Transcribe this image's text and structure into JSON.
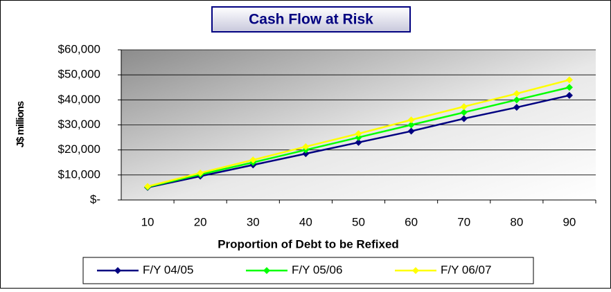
{
  "chart_data": {
    "type": "line",
    "title": "Cash Flow at Risk",
    "x_label": "Proportion of Debt to be Refixed",
    "y_label": "J$ millions",
    "categories": [
      "10",
      "20",
      "30",
      "40",
      "50",
      "60",
      "70",
      "80",
      "90"
    ],
    "series": [
      {
        "name": "F/Y 04/05",
        "color": "#000080",
        "values": [
          5000,
          9500,
          14000,
          18500,
          23000,
          27500,
          32500,
          37000,
          41800
        ]
      },
      {
        "name": "F/Y 05/06",
        "color": "#00ff00",
        "values": [
          5200,
          10200,
          15000,
          20000,
          25000,
          30000,
          35000,
          40000,
          45000
        ]
      },
      {
        "name": "F/Y 06/07",
        "color": "#ffff00",
        "values": [
          5400,
          10800,
          16000,
          21300,
          26500,
          32000,
          37300,
          42500,
          48000
        ]
      }
    ],
    "ylim": [
      0,
      60000
    ],
    "yticks": [
      {
        "value": 0,
        "label": "$-"
      },
      {
        "value": 10000,
        "label": "$10,000"
      },
      {
        "value": 20000,
        "label": "$20,000"
      },
      {
        "value": 30000,
        "label": "$30,000"
      },
      {
        "value": 40000,
        "label": "$40,000"
      },
      {
        "value": 50000,
        "label": "$50,000"
      },
      {
        "value": 60000,
        "label": "$60,000"
      }
    ],
    "grid": true,
    "legend": "bottom"
  }
}
